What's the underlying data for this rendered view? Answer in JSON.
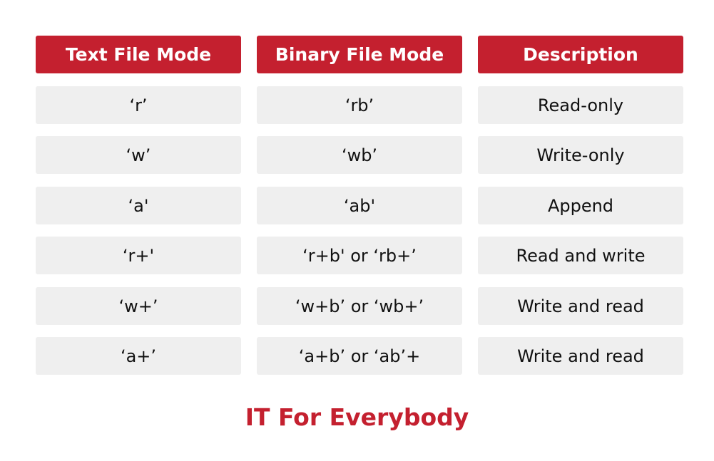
{
  "headers": [
    "Text File Mode",
    "Binary File Mode",
    "Description"
  ],
  "rows": [
    [
      "‘r’",
      "‘rb’",
      "Read-only"
    ],
    [
      "‘w’",
      "‘wb’",
      "Write-only"
    ],
    [
      "‘a'",
      "‘ab'",
      "Append"
    ],
    [
      "‘r+'",
      "‘r+b' or ‘rb+’",
      "Read and write"
    ],
    [
      "‘w+’",
      "‘w+b’ or ‘wb+’",
      "Write and read"
    ],
    [
      "‘a+’",
      "‘a+b’ or ‘ab’+",
      "Write and read"
    ]
  ],
  "footer": "IT For Everybody",
  "colors": {
    "accent": "#c4202f",
    "cell_bg": "#efefef"
  }
}
